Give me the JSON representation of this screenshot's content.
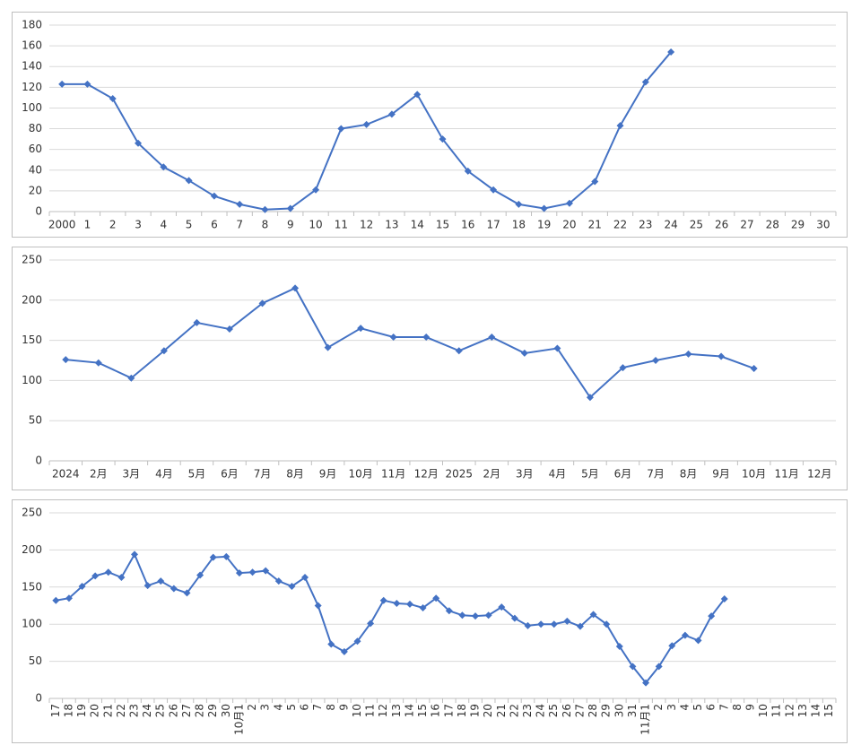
{
  "chart_data": [
    {
      "type": "line",
      "categories": [
        "2000",
        "1",
        "2",
        "3",
        "4",
        "5",
        "6",
        "7",
        "8",
        "9",
        "10",
        "11",
        "12",
        "13",
        "14",
        "15",
        "16",
        "17",
        "18",
        "19",
        "20",
        "21",
        "22",
        "23",
        "24",
        "25",
        "26",
        "27",
        "28",
        "29",
        "30"
      ],
      "series": [
        {
          "color": "#4472c4",
          "values": [
            123,
            123,
            109,
            66,
            43,
            30,
            15,
            7,
            2,
            3,
            21,
            80,
            84,
            94,
            113,
            70,
            39,
            21,
            7,
            3,
            8,
            29,
            83,
            125,
            154,
            null,
            null,
            null,
            null,
            null,
            null
          ]
        }
      ],
      "ylim": [
        0,
        180
      ],
      "yticks": [
        0,
        20,
        40,
        60,
        80,
        100,
        120,
        140,
        160,
        180
      ],
      "grid": true
    },
    {
      "type": "line",
      "categories": [
        "2024",
        "2月",
        "3月",
        "4月",
        "5月",
        "6月",
        "7月",
        "8月",
        "9月",
        "10月",
        "11月",
        "12月",
        "2025",
        "2月",
        "3月",
        "4月",
        "5月",
        "6月",
        "7月",
        "8月",
        "9月",
        "10月",
        "11月",
        "12月"
      ],
      "series": [
        {
          "color": "#4472c4",
          "values": [
            126,
            122,
            103,
            137,
            172,
            164,
            196,
            215,
            141,
            165,
            154,
            154,
            137,
            154,
            134,
            140,
            79,
            116,
            125,
            133,
            130,
            115,
            null,
            null
          ]
        }
      ],
      "ylim": [
        0,
        250
      ],
      "yticks": [
        0,
        50,
        100,
        150,
        200,
        250
      ],
      "grid": true
    },
    {
      "type": "line",
      "x_label_rotation": true,
      "categories": [
        "17",
        "18",
        "19",
        "20",
        "21",
        "22",
        "23",
        "24",
        "25",
        "26",
        "27",
        "28",
        "29",
        "30",
        "10月1",
        "2",
        "3",
        "4",
        "5",
        "6",
        "7",
        "8",
        "9",
        "10",
        "11",
        "12",
        "13",
        "14",
        "15",
        "16",
        "17",
        "18",
        "19",
        "20",
        "21",
        "22",
        "23",
        "24",
        "25",
        "26",
        "27",
        "28",
        "29",
        "30",
        "31",
        "11月1",
        "2",
        "3",
        "4",
        "5",
        "6",
        "7",
        "8",
        "9",
        "10",
        "11",
        "12",
        "13",
        "14",
        "15"
      ],
      "series": [
        {
          "color": "#4472c4",
          "values": [
            132,
            135,
            151,
            165,
            170,
            163,
            194,
            152,
            158,
            148,
            142,
            166,
            190,
            191,
            169,
            170,
            172,
            158,
            151,
            163,
            125,
            73,
            63,
            77,
            101,
            132,
            128,
            127,
            122,
            135,
            118,
            112,
            111,
            112,
            123,
            108,
            98,
            100,
            100,
            104,
            97,
            113,
            100,
            70,
            43,
            21,
            43,
            71,
            85,
            78,
            111,
            134,
            null,
            null,
            null,
            null,
            null,
            null,
            null,
            null
          ]
        }
      ],
      "ylim": [
        0,
        250
      ],
      "yticks": [
        0,
        50,
        100,
        150,
        200,
        250
      ],
      "grid": true
    }
  ]
}
